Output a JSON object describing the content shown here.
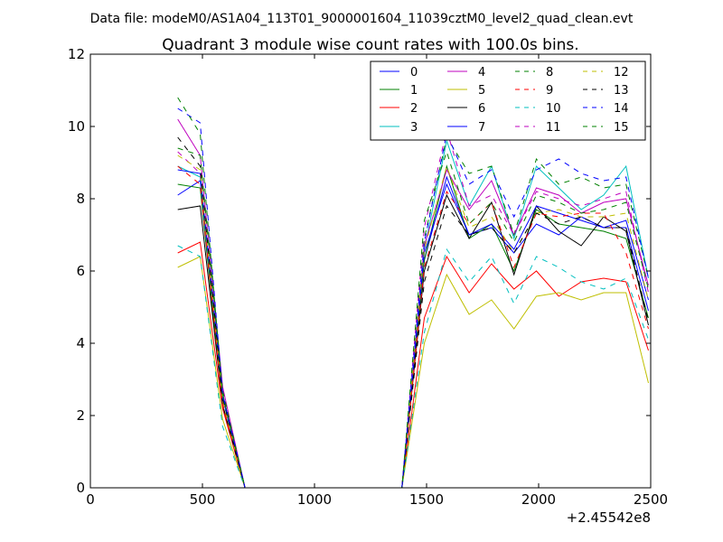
{
  "chart_data": {
    "type": "line",
    "suptitle": "Data file: modeM0/AS1A04_113T01_9000001604_11039cztM0_level2_quad_clean.evt",
    "title": "Quadrant 3 module wise count rates with 100.0s bins.",
    "xlabel": "",
    "ylabel": "",
    "x_offset_label": "+2.45542e8",
    "xlim": [
      0,
      2500
    ],
    "ylim": [
      0,
      12
    ],
    "xticks": [
      0,
      500,
      1000,
      1500,
      2000,
      2500
    ],
    "yticks": [
      0,
      2,
      4,
      6,
      8,
      10,
      12
    ],
    "xtick_labels": [
      "0",
      "500",
      "1000",
      "1500",
      "2000",
      "2500"
    ],
    "ytick_labels": [
      "0",
      "2",
      "4",
      "6",
      "8",
      "10",
      "12"
    ],
    "grid": false,
    "legend_position": "top-right",
    "x": [
      390,
      490,
      590,
      690,
      790,
      890,
      990,
      1090,
      1190,
      1290,
      1390,
      1490,
      1590,
      1690,
      1790,
      1890,
      1990,
      2090,
      2190,
      2290,
      2390,
      2490
    ],
    "series": [
      {
        "name": "0",
        "color": "#0000ff",
        "dash": "solid",
        "values": [
          8.1,
          8.5,
          2.5,
          0,
          0,
          0,
          0,
          0,
          0,
          0,
          0,
          6.3,
          8.6,
          7.0,
          7.2,
          6.5,
          7.3,
          7.0,
          7.5,
          7.2,
          7.2,
          4.9
        ]
      },
      {
        "name": "1",
        "color": "#008000",
        "dash": "solid",
        "values": [
          8.4,
          8.3,
          2.3,
          0,
          0,
          0,
          0,
          0,
          0,
          0,
          0,
          6.3,
          8.9,
          6.9,
          7.3,
          6.0,
          7.7,
          7.3,
          7.2,
          7.1,
          6.9,
          4.7
        ]
      },
      {
        "name": "2",
        "color": "#ff0000",
        "dash": "solid",
        "values": [
          6.5,
          6.8,
          2.2,
          0,
          0,
          0,
          0,
          0,
          0,
          0,
          0,
          4.7,
          6.4,
          5.4,
          6.2,
          5.5,
          6.0,
          5.3,
          5.7,
          5.8,
          5.7,
          3.8
        ]
      },
      {
        "name": "3",
        "color": "#00bfbf",
        "dash": "solid",
        "values": [
          8.9,
          8.6,
          2.6,
          0,
          0,
          0,
          0,
          0,
          0,
          0,
          0,
          6.6,
          9.6,
          7.8,
          8.9,
          6.9,
          8.9,
          8.3,
          7.7,
          8.1,
          8.9,
          5.8
        ]
      },
      {
        "name": "4",
        "color": "#bf00bf",
        "dash": "solid",
        "values": [
          10.2,
          9.2,
          2.8,
          0,
          0,
          0,
          0,
          0,
          0,
          0,
          0,
          6.7,
          8.8,
          7.7,
          8.5,
          7.0,
          8.3,
          8.1,
          7.6,
          7.9,
          8.0,
          5.6
        ]
      },
      {
        "name": "5",
        "color": "#bfbf00",
        "dash": "solid",
        "values": [
          6.1,
          6.4,
          1.9,
          0,
          0,
          0,
          0,
          0,
          0,
          0,
          0,
          4.0,
          5.9,
          4.8,
          5.2,
          4.4,
          5.3,
          5.4,
          5.2,
          5.4,
          5.4,
          2.9
        ]
      },
      {
        "name": "6",
        "color": "#000000",
        "dash": "solid",
        "values": [
          7.7,
          7.8,
          2.3,
          0,
          0,
          0,
          0,
          0,
          0,
          0,
          0,
          6.0,
          8.1,
          6.9,
          7.9,
          5.9,
          7.8,
          7.1,
          6.7,
          7.5,
          7.1,
          4.5
        ]
      },
      {
        "name": "7",
        "color": "#0000ff",
        "dash": "solid",
        "values": [
          8.8,
          8.7,
          2.6,
          0,
          0,
          0,
          0,
          0,
          0,
          0,
          0,
          6.5,
          8.4,
          7.0,
          7.3,
          6.6,
          7.8,
          7.6,
          7.4,
          7.2,
          7.4,
          5.2
        ]
      },
      {
        "name": "8",
        "color": "#008000",
        "dash": "dashed",
        "values": [
          9.4,
          9.2,
          2.7,
          0,
          0,
          0,
          0,
          0,
          0,
          0,
          0,
          6.9,
          9.7,
          8.7,
          8.9,
          7.0,
          9.1,
          8.4,
          8.6,
          8.3,
          8.4,
          5.8
        ]
      },
      {
        "name": "9",
        "color": "#ff0000",
        "dash": "dashed",
        "values": [
          8.9,
          8.4,
          2.3,
          0,
          0,
          0,
          0,
          0,
          0,
          0,
          0,
          6.1,
          8.2,
          7.3,
          7.9,
          6.1,
          7.6,
          7.5,
          7.6,
          7.6,
          6.5,
          4.4
        ]
      },
      {
        "name": "10",
        "color": "#00bfbf",
        "dash": "dashed",
        "values": [
          6.7,
          6.4,
          1.7,
          0,
          0,
          0,
          0,
          0,
          0,
          0,
          0,
          4.3,
          6.6,
          5.7,
          6.4,
          5.1,
          6.4,
          6.1,
          5.7,
          5.5,
          5.8,
          4.1
        ]
      },
      {
        "name": "11",
        "color": "#bf00bf",
        "dash": "dashed",
        "values": [
          9.3,
          8.7,
          2.5,
          0,
          0,
          0,
          0,
          0,
          0,
          0,
          0,
          7.2,
          9.9,
          7.8,
          8.1,
          7.0,
          8.2,
          8.0,
          7.8,
          8.0,
          8.2,
          5.4
        ]
      },
      {
        "name": "12",
        "color": "#bfbf00",
        "dash": "dashed",
        "values": [
          9.2,
          8.8,
          2.4,
          0,
          0,
          0,
          0,
          0,
          0,
          0,
          0,
          6.6,
          8.9,
          7.2,
          7.5,
          6.5,
          7.6,
          7.7,
          7.5,
          7.5,
          7.6,
          5.2
        ]
      },
      {
        "name": "13",
        "color": "#000000",
        "dash": "dashed",
        "values": [
          9.7,
          8.9,
          2.5,
          0,
          0,
          0,
          0,
          0,
          0,
          0,
          0,
          5.7,
          7.8,
          7.0,
          7.2,
          6.5,
          7.6,
          7.3,
          7.5,
          7.2,
          7.2,
          4.6
        ]
      },
      {
        "name": "14",
        "color": "#0000ff",
        "dash": "dashed",
        "values": [
          10.5,
          10.1,
          2.6,
          0,
          0,
          0,
          0,
          0,
          0,
          0,
          0,
          6.8,
          9.8,
          8.4,
          8.8,
          7.5,
          8.8,
          9.1,
          8.7,
          8.5,
          8.6,
          5.8
        ]
      },
      {
        "name": "15",
        "color": "#008000",
        "dash": "dashed",
        "values": [
          10.8,
          9.8,
          2.6,
          0,
          0,
          0,
          0,
          0,
          0,
          0,
          0,
          7.4,
          9.3,
          7.3,
          7.9,
          6.8,
          8.1,
          7.9,
          7.6,
          7.7,
          7.9,
          5.5
        ]
      }
    ]
  }
}
